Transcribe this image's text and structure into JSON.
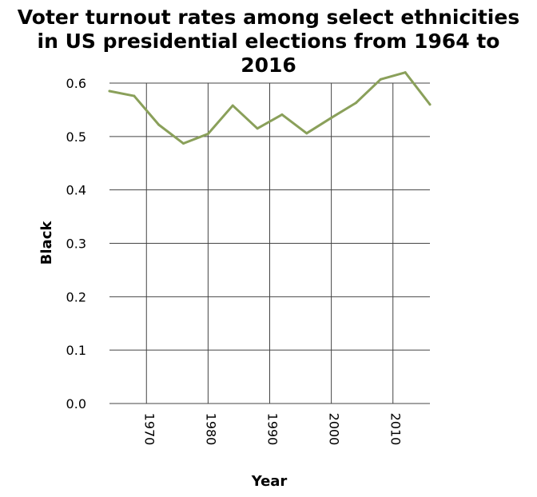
{
  "chart_data": {
    "type": "line",
    "title": "Voter turnout rates among select ethnicities in US presidential elections from 1964 to 2016",
    "title_lines": [
      "Voter turnout rates among select ethnicities",
      "in US presidential elections from 1964 to",
      "2016"
    ],
    "xlabel": "Year",
    "ylabel": "Black",
    "xlim": [
      1964,
      2016
    ],
    "ylim": [
      0.0,
      0.6
    ],
    "x_ticks": [
      1970,
      1980,
      1990,
      2000,
      2010
    ],
    "y_ticks": [
      0.0,
      0.1,
      0.2,
      0.3,
      0.4,
      0.5,
      0.6
    ],
    "x_tick_labels": [
      "1970",
      "1980",
      "1990",
      "2000",
      "2010"
    ],
    "y_tick_labels": [
      "0.0",
      "0.1",
      "0.2",
      "0.3",
      "0.4",
      "0.5",
      "0.6"
    ],
    "grid": true,
    "series": [
      {
        "color": "#8aa05a",
        "x": [
          1964,
          1968,
          1972,
          1976,
          1980,
          1984,
          1988,
          1992,
          1996,
          2000,
          2004,
          2008,
          2012,
          2016
        ],
        "values": [
          0.585,
          0.576,
          0.522,
          0.487,
          0.505,
          0.558,
          0.515,
          0.541,
          0.506,
          0.535,
          0.563,
          0.607,
          0.62,
          0.56
        ]
      }
    ]
  }
}
